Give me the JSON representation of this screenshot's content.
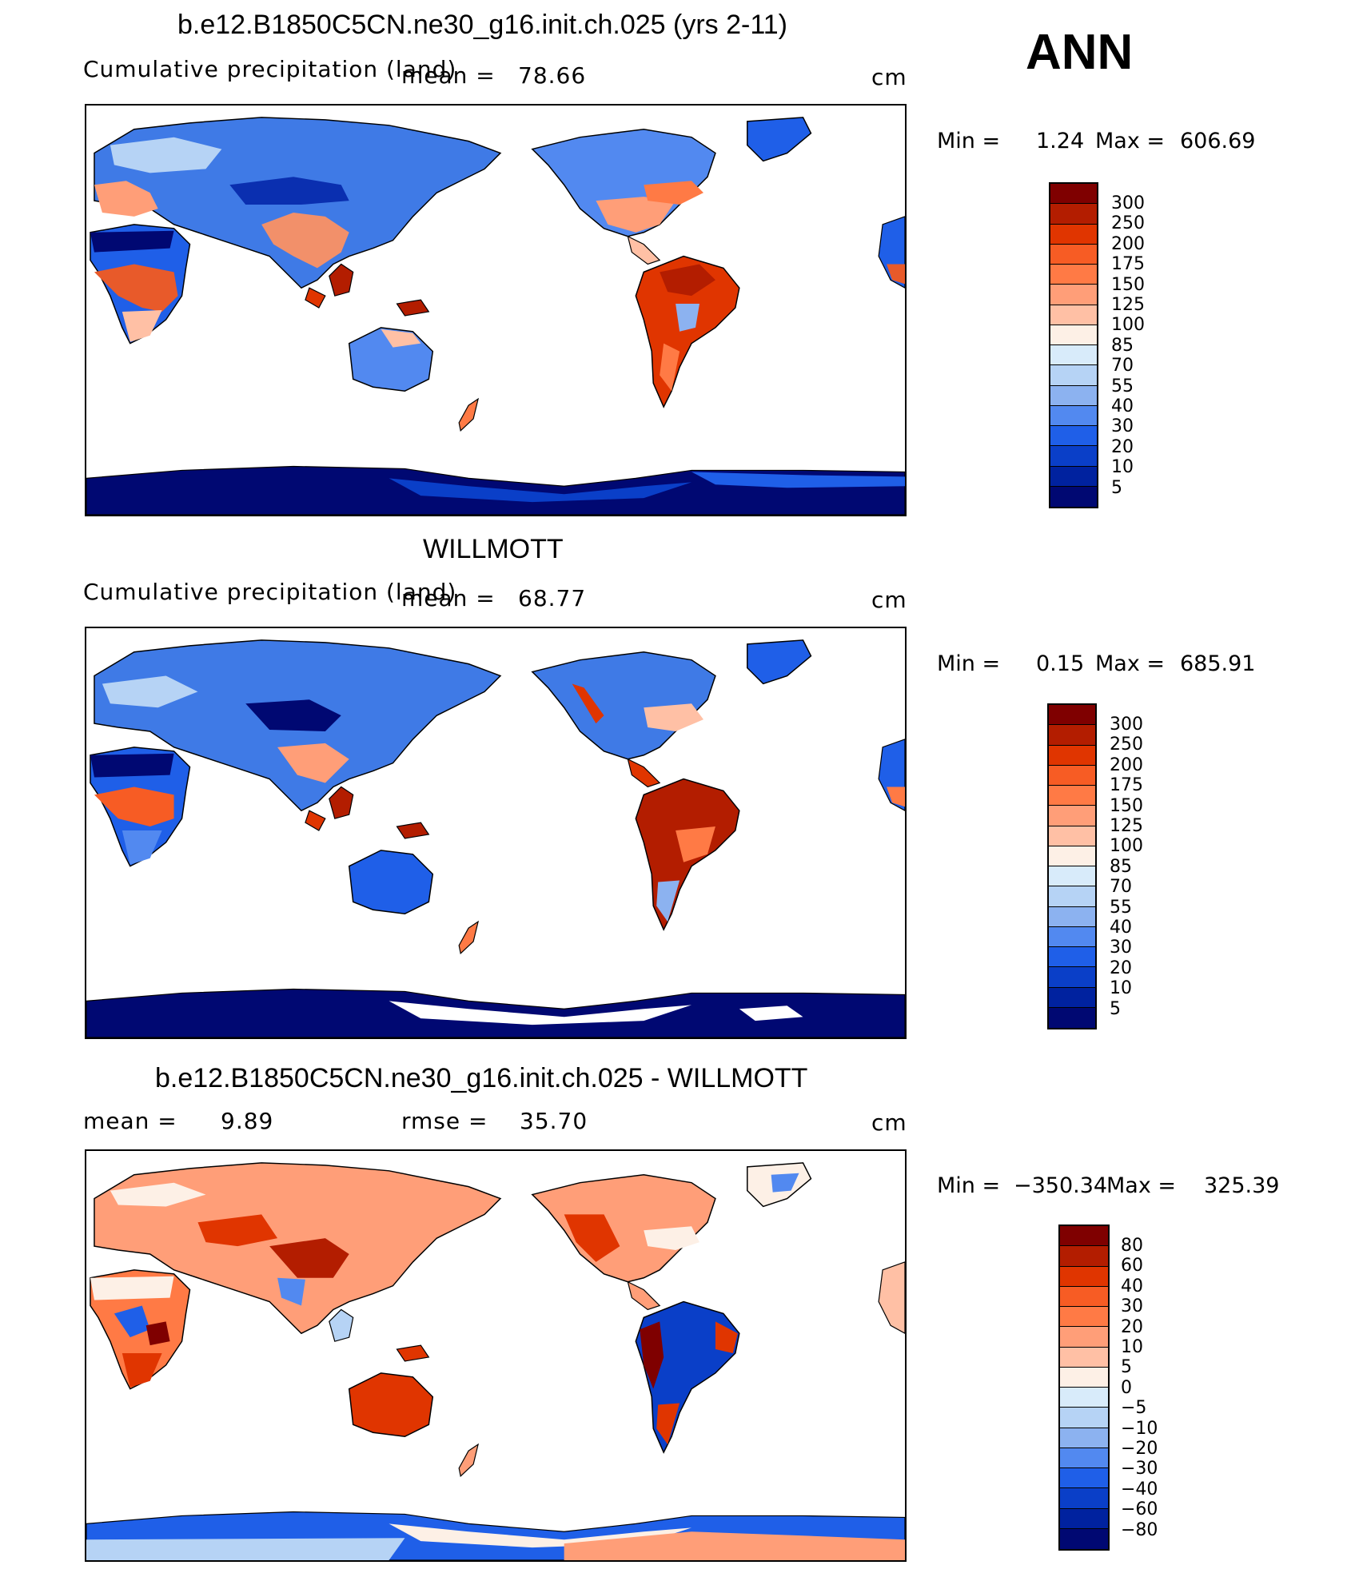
{
  "season": "ANN",
  "units": "cm",
  "panels": [
    {
      "title": "b.e12.B1850C5CN.ne30_g16.init.ch.025 (yrs 2-11)",
      "subtitle": "Cumulative precipitation (land)",
      "mean_label": "mean =",
      "mean": "78.66",
      "min_label": "Min =",
      "min": "1.24",
      "max_label": "Max =",
      "max": "606.69",
      "colorbar_labels": [
        "300",
        "250",
        "200",
        "175",
        "150",
        "125",
        "100",
        "85",
        "70",
        "55",
        "40",
        "30",
        "20",
        "10",
        "5"
      ],
      "colorbar_colors": [
        "#7f0000",
        "#b31d00",
        "#e03500",
        "#f75c24",
        "#ff7a45",
        "#ff9e78",
        "#ffc0a5",
        "#fdf0e6",
        "#d8ebfa",
        "#b6d3f5",
        "#8cb2f0",
        "#5289f0",
        "#1f5fe8",
        "#0a3fc8",
        "#00229f",
        "#000872"
      ]
    },
    {
      "title": "WILLMOTT",
      "subtitle": "Cumulative precipitation (land)",
      "mean_label": "mean =",
      "mean": "68.77",
      "min_label": "Min =",
      "min": "0.15",
      "max_label": "Max =",
      "max": "685.91",
      "colorbar_labels": [
        "300",
        "250",
        "200",
        "175",
        "150",
        "125",
        "100",
        "85",
        "70",
        "55",
        "40",
        "30",
        "20",
        "10",
        "5"
      ],
      "colorbar_colors": [
        "#7f0000",
        "#b31d00",
        "#e03500",
        "#f75c24",
        "#ff7a45",
        "#ff9e78",
        "#ffc0a5",
        "#fdf0e6",
        "#d8ebfa",
        "#b6d3f5",
        "#8cb2f0",
        "#5289f0",
        "#1f5fe8",
        "#0a3fc8",
        "#00229f",
        "#000872"
      ]
    },
    {
      "title": "b.e12.B1850C5CN.ne30_g16.init.ch.025 - WILLMOTT",
      "mean_label": "mean =",
      "mean": "9.89",
      "rmse_label": "rmse =",
      "rmse": "35.70",
      "min_label": "Min =",
      "min": "−350.34",
      "max_label": "Max =",
      "max": "325.39",
      "colorbar_labels": [
        "80",
        "60",
        "40",
        "30",
        "20",
        "10",
        "5",
        "0",
        "−5",
        "−10",
        "−20",
        "−30",
        "−40",
        "−60",
        "−80"
      ],
      "colorbar_colors": [
        "#7f0000",
        "#b31d00",
        "#e03500",
        "#f75c24",
        "#ff7a45",
        "#ff9e78",
        "#ffc0a5",
        "#fdf0e6",
        "#d8ebfa",
        "#b6d3f5",
        "#8cb2f0",
        "#5289f0",
        "#1f5fe8",
        "#0a3fc8",
        "#00229f",
        "#000872"
      ]
    }
  ]
}
